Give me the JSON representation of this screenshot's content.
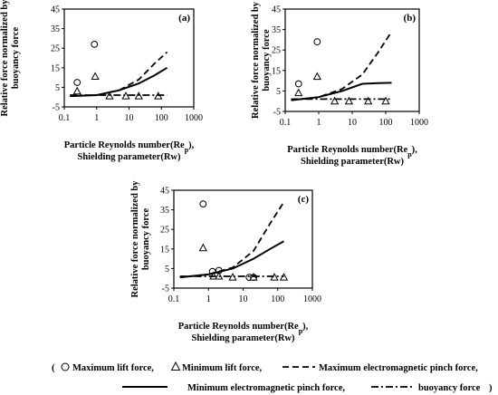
{
  "chart_data": [
    {
      "type": "line",
      "panel_label": "(a)",
      "ylabel": "Relative force normalized by buoyancy force",
      "xlabel_lines": [
        "Particle Reynolds number(Re",
        "p",
        "),",
        "Shielding parameter(Rw)"
      ],
      "xscale": "log",
      "xlim": [
        0.1,
        1000
      ],
      "ylim": [
        -5,
        45
      ],
      "xticks": [
        "0.1",
        "1",
        "10",
        "100",
        "1000"
      ],
      "yticks": [
        "-5",
        "5",
        "15",
        "25",
        "35",
        "45"
      ],
      "series": [
        {
          "key": "max_lift",
          "style": "circle",
          "points": [
            [
              0.25,
              7.5
            ],
            [
              0.85,
              27
            ]
          ]
        },
        {
          "key": "min_lift",
          "style": "triangle",
          "points": [
            [
              0.25,
              3
            ],
            [
              0.9,
              10.5
            ],
            [
              2.5,
              0.5
            ],
            [
              8,
              0.5
            ],
            [
              20,
              0.5
            ],
            [
              80,
              0.5
            ]
          ]
        },
        {
          "key": "max_emp",
          "style": "dash",
          "points": [
            [
              0.15,
              0.5
            ],
            [
              1,
              1
            ],
            [
              5,
              3.5
            ],
            [
              20,
              9
            ],
            [
              60,
              17
            ],
            [
              150,
              23
            ]
          ]
        },
        {
          "key": "min_emp",
          "style": "solid",
          "points": [
            [
              0.15,
              0.5
            ],
            [
              1,
              1
            ],
            [
              5,
              3.5
            ],
            [
              20,
              7
            ],
            [
              60,
              11
            ],
            [
              150,
              15
            ]
          ]
        },
        {
          "key": "buoyancy",
          "style": "dashdot",
          "points": [
            [
              0.15,
              1
            ],
            [
              0.6,
              1
            ],
            [
              2,
              1
            ],
            [
              10,
              1
            ],
            [
              40,
              1
            ],
            [
              150,
              1
            ]
          ]
        }
      ]
    },
    {
      "type": "line",
      "panel_label": "(b)",
      "ylabel": "Relative force normalized by buoyancy force",
      "xlabel_lines": [
        "Particle Reynolds number(Re",
        "p",
        "),",
        "Shielding parameter(Rw)"
      ],
      "xscale": "log",
      "xlim": [
        0.1,
        1000
      ],
      "ylim": [
        -5,
        45
      ],
      "xticks": [
        "0.1",
        "1",
        "10",
        "100",
        "1000"
      ],
      "yticks": [
        "-5",
        "5",
        "15",
        "25",
        "35",
        "45"
      ],
      "series": [
        {
          "key": "max_lift",
          "style": "circle",
          "points": [
            [
              0.25,
              8.5
            ],
            [
              0.9,
              29
            ]
          ]
        },
        {
          "key": "min_lift",
          "style": "triangle",
          "points": [
            [
              0.25,
              4
            ],
            [
              0.9,
              12
            ],
            [
              3,
              0
            ],
            [
              8,
              0
            ],
            [
              30,
              0
            ],
            [
              100,
              0
            ]
          ]
        },
        {
          "key": "max_emp",
          "style": "dash",
          "points": [
            [
              0.15,
              0.5
            ],
            [
              1,
              2
            ],
            [
              5,
              6
            ],
            [
              20,
              13
            ],
            [
              60,
              24
            ],
            [
              150,
              34
            ]
          ]
        },
        {
          "key": "min_emp",
          "style": "solid",
          "points": [
            [
              0.15,
              0.5
            ],
            [
              1,
              2
            ],
            [
              5,
              5
            ],
            [
              20,
              8.5
            ],
            [
              60,
              8.8
            ],
            [
              150,
              9
            ]
          ]
        },
        {
          "key": "buoyancy",
          "style": "dashdot",
          "points": [
            [
              0.15,
              1
            ],
            [
              0.8,
              1
            ],
            [
              3,
              1
            ],
            [
              15,
              1
            ],
            [
              60,
              1
            ],
            [
              150,
              1
            ]
          ]
        }
      ]
    },
    {
      "type": "line",
      "panel_label": "(c)",
      "ylabel": "Relative force normalized by buoyancy force",
      "xlabel_lines": [
        "Particle Reynolds number(Re",
        "p",
        "),",
        "Shielding parameter(Rw)"
      ],
      "xscale": "log",
      "xlim": [
        0.1,
        1000
      ],
      "ylim": [
        -5,
        45
      ],
      "xticks": [
        "0.1",
        "1",
        "10",
        "100",
        "1000"
      ],
      "yticks": [
        "-5",
        "5",
        "15",
        "25",
        "35",
        "45"
      ],
      "series": [
        {
          "key": "max_lift",
          "style": "circle",
          "points": [
            [
              0.7,
              38
            ],
            [
              1.3,
              3.5
            ],
            [
              2,
              4
            ],
            [
              15,
              0.5
            ],
            [
              20,
              0.5
            ]
          ]
        },
        {
          "key": "min_lift",
          "style": "triangle",
          "points": [
            [
              0.7,
              15.5
            ],
            [
              1.4,
              1
            ],
            [
              2,
              1
            ],
            [
              5,
              0.5
            ],
            [
              20,
              0.5
            ],
            [
              80,
              0.5
            ],
            [
              150,
              0.5
            ]
          ]
        },
        {
          "key": "max_emp",
          "style": "dash",
          "points": [
            [
              0.15,
              0.5
            ],
            [
              1,
              2
            ],
            [
              5,
              5.5
            ],
            [
              20,
              14
            ],
            [
              60,
              28
            ],
            [
              150,
              39
            ]
          ]
        },
        {
          "key": "min_emp",
          "style": "solid",
          "points": [
            [
              0.15,
              0.5
            ],
            [
              1,
              2
            ],
            [
              5,
              5
            ],
            [
              20,
              10
            ],
            [
              60,
              15
            ],
            [
              150,
              19
            ]
          ]
        },
        {
          "key": "buoyancy",
          "style": "dashdot",
          "points": [
            [
              0.15,
              1
            ],
            [
              1,
              1
            ],
            [
              5,
              1
            ],
            [
              20,
              1
            ],
            [
              60,
              1
            ],
            [
              150,
              1
            ]
          ]
        }
      ]
    }
  ],
  "legend": {
    "open": "(",
    "close": ")",
    "items": [
      {
        "key": "max_lift",
        "label": "Maximum lift force,"
      },
      {
        "key": "min_lift",
        "label": "Minimum lift force,"
      },
      {
        "key": "max_emp",
        "label": "Maximum electromagnetic pinch force,"
      },
      {
        "key": "min_emp",
        "label": "Minimum electromagnetic pinch force,"
      },
      {
        "key": "buoyancy",
        "label": "buoyancy force"
      }
    ]
  }
}
